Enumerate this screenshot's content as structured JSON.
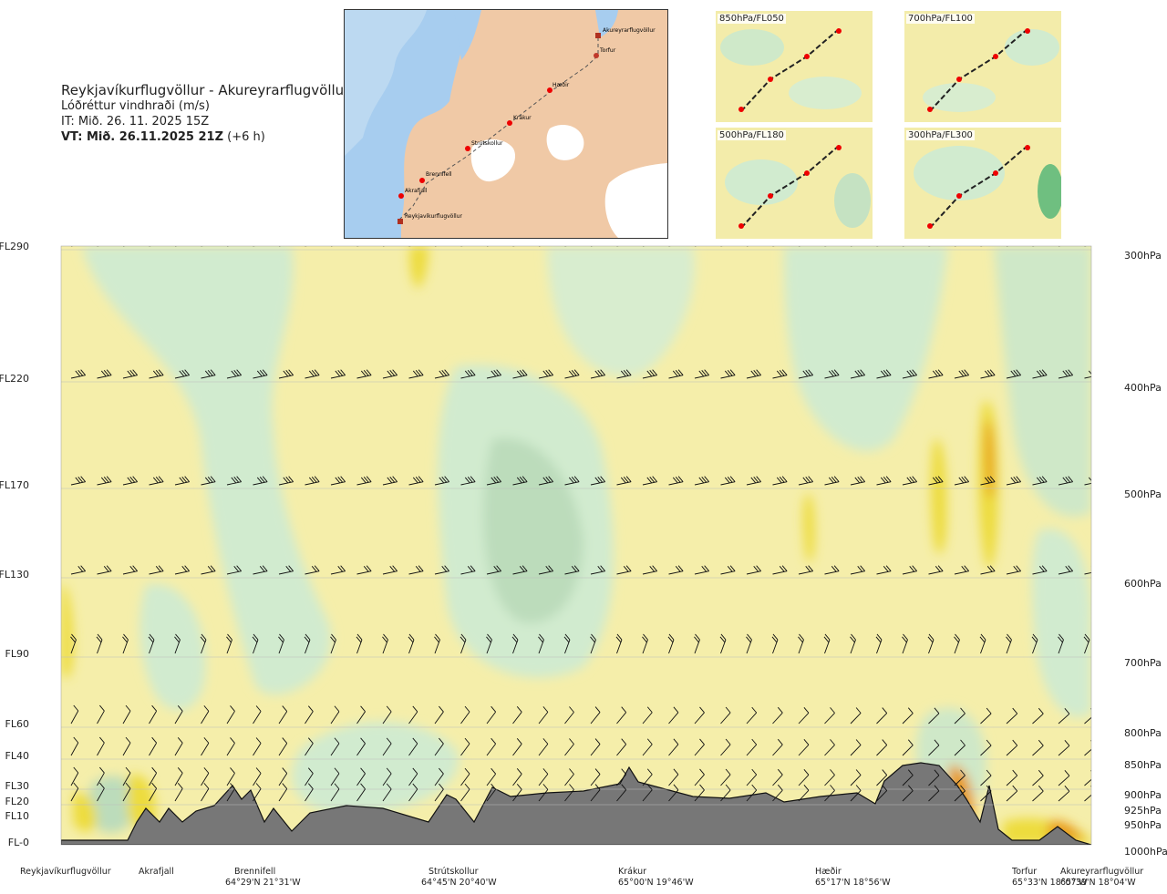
{
  "header": {
    "route": "Reykjavíkurflugvöllur - Akureyrarflugvöllur",
    "subtitle": "Lóðréttur vindhraði (m/s)",
    "it": "IT: Mið. 26. 11. 2025 15Z",
    "vt_bold": "VT: Mið. 26.11.2025 21Z",
    "vt_rest": " (+6 h)"
  },
  "map": {
    "points": [
      {
        "name": "Akureyrarflugvöllur"
      },
      {
        "name": "Torfur"
      },
      {
        "name": "Hæðir"
      },
      {
        "name": "Krákur"
      },
      {
        "name": "Strútskollur"
      },
      {
        "name": "Brennifell"
      },
      {
        "name": "Akrafjall"
      },
      {
        "name": "Reykjavíkurflugvöllur"
      }
    ]
  },
  "thumbnails": [
    {
      "label": "850hPa/FL050"
    },
    {
      "label": "700hPa/FL100"
    },
    {
      "label": "500hPa/FL180"
    },
    {
      "label": "300hPa/FL300"
    }
  ],
  "chart_data": {
    "type": "heatmap",
    "title": "Lóðréttur vindhraði (m/s)",
    "description_variable": "vertical wind speed cross-section",
    "y_left_labels": [
      "FL290",
      "FL220",
      "FL170",
      "FL130",
      "FL90",
      "FL60",
      "FL40",
      "FL30",
      "FL20",
      "FL10",
      "FL-0"
    ],
    "y_right_labels": [
      "300hPa",
      "400hPa",
      "500hPa",
      "600hPa",
      "700hPa",
      "800hPa",
      "850hPa",
      "900hPa",
      "925hPa",
      "950hPa",
      "1000hPa"
    ],
    "locations": [
      {
        "name": "Reykjavíkurflugvöllur",
        "coord": ""
      },
      {
        "name": "Akrafjall",
        "coord": ""
      },
      {
        "name": "Brennifell",
        "coord": "64°29'N 21°31'W"
      },
      {
        "name": "Strútskollur",
        "coord": "64°45'N 20°40'W"
      },
      {
        "name": "Krákur",
        "coord": "65°00'N 19°46'W"
      },
      {
        "name": "Hæðir",
        "coord": "65°17'N 18°56'W"
      },
      {
        "name": "Torfur",
        "coord": "65°33'N 18°07'W"
      },
      {
        "name": "Akureyrarflugvöllur",
        "coord": "65°39'N 18°04'W"
      }
    ],
    "colors": {
      "neutral": "#f5eeaa",
      "weak_down": "#d1ebcf",
      "down": "#a9d3ad",
      "near_zero": "#f7fbe4",
      "up": "#eddc3e",
      "strong_up": "#e89a14",
      "terrain": "#777777"
    }
  }
}
